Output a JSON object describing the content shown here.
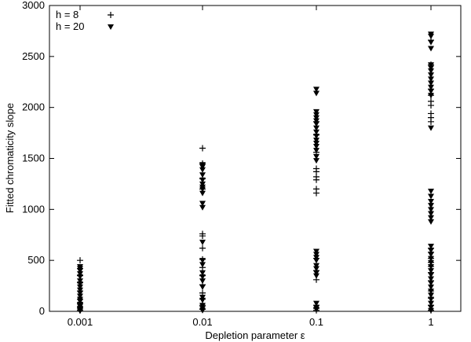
{
  "chart_data": {
    "type": "scatter",
    "title": "",
    "xlabel": "Depletion parameter ε",
    "ylabel": "Fitted chromaticity slope",
    "x_scale": "log-categorical",
    "x_ticks": [
      "0.001",
      "0.01",
      "0.1",
      "1"
    ],
    "y_ticks": [
      "0",
      "500",
      "1000",
      "1500",
      "2000",
      "2500",
      "3000"
    ],
    "ylim": [
      0,
      3000
    ],
    "grid": false,
    "legend_position": "top-left",
    "series": [
      {
        "name": "h = 8",
        "marker": "plus",
        "points": [
          {
            "x": "0.001",
            "values": [
              500,
              420,
              350,
              280,
              200,
              120,
              80,
              40,
              10
            ]
          },
          {
            "x": "0.01",
            "values": [
              1600,
              1450,
              1300,
              1200,
              760,
              740,
              620,
              510,
              430,
              350,
              260,
              180,
              120,
              60,
              20
            ]
          },
          {
            "x": "0.1",
            "values": [
              1860,
              1730,
              1560,
              1400,
              1370,
              1320,
              1290,
              1200,
              1160,
              520,
              400,
              310,
              60,
              30,
              10
            ]
          },
          {
            "x": "1",
            "values": [
              2660,
              2420,
              2180,
              2120,
              2060,
              2020,
              1940,
              1900,
              1860,
              620,
              580,
              520,
              480,
              440,
              380,
              300,
              200,
              130,
              60,
              10
            ]
          }
        ]
      },
      {
        "name": "h = 20",
        "marker": "triangle-down",
        "points": [
          {
            "x": "0.001",
            "values": [
              440,
              420,
              400,
              370,
              340,
              300,
              270,
              240,
              210,
              180,
              150,
              120,
              100,
              70,
              50,
              30,
              15,
              5
            ]
          },
          {
            "x": "0.01",
            "values": [
              1440,
              1420,
              1390,
              1340,
              1290,
              1250,
              1220,
              1200,
              1160,
              1060,
              1020,
              680,
              500,
              460,
              380,
              340,
              300,
              240,
              140,
              110,
              60,
              30,
              10
            ]
          },
          {
            "x": "0.1",
            "values": [
              2180,
              2140,
              1960,
              1930,
              1900,
              1870,
              1840,
              1800,
              1760,
              1720,
              1680,
              1650,
              1620,
              1580,
              1520,
              1480,
              590,
              560,
              530,
              500,
              450,
              420,
              380,
              350,
              80,
              40,
              20
            ]
          },
          {
            "x": "1",
            "values": [
              2720,
              2700,
              2640,
              2580,
              2420,
              2390,
              2360,
              2320,
              2280,
              2240,
              2200,
              2160,
              2120,
              1800,
              1180,
              1130,
              1080,
              1040,
              1000,
              960,
              920,
              880,
              640,
              600,
              560,
              520,
              480,
              440,
              400,
              360,
              320,
              280,
              240,
              200,
              160,
              120,
              80,
              40,
              10
            ]
          }
        ]
      }
    ]
  }
}
